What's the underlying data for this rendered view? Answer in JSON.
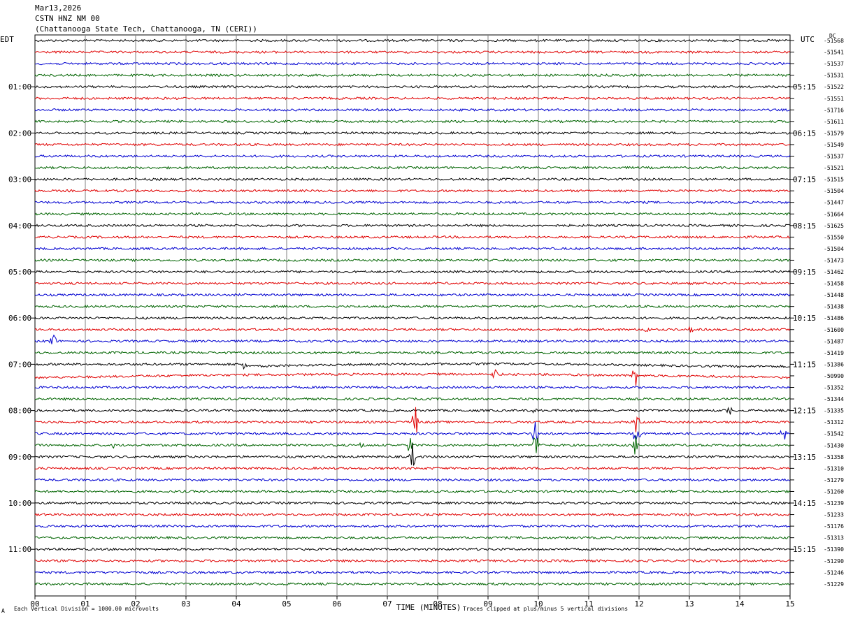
{
  "header": {
    "date": "Mar13,2026",
    "station": "CSTN HNZ NM 00",
    "location": "(Chattanooga State Tech, Chattanooga, TN (CERI))"
  },
  "left_tz": "EDT",
  "right_tz": "UTC",
  "dc_label": "DC",
  "footer": {
    "scale_note": "Each Vertical Division = 1000.00 microvolts",
    "clip_note": "Traces clipped at plus/minus 5 vertical divisions",
    "corner_mark": "A"
  },
  "colors": {
    "trace_cycle": [
      "#000000",
      "#e00000",
      "#0000d0",
      "#006400"
    ],
    "grid": "#808080"
  },
  "chart_data": {
    "type": "line",
    "title": "CSTN HNZ NM 00",
    "xlabel": "TIME (MINUTES)",
    "xlim": [
      0,
      15
    ],
    "x_ticks": [
      "00",
      "01",
      "02",
      "03",
      "04",
      "05",
      "06",
      "07",
      "08",
      "09",
      "10",
      "11",
      "12",
      "13",
      "14",
      "15"
    ],
    "traces_per_hour": 4,
    "left_hour_labels": [
      "01:00",
      "02:00",
      "03:00",
      "04:00",
      "05:00",
      "06:00",
      "07:00",
      "08:00",
      "09:00",
      "10:00",
      "11:00"
    ],
    "right_hour_labels": [
      "05:15",
      "06:15",
      "07:15",
      "08:15",
      "09:15",
      "10:15",
      "11:15",
      "12:15",
      "13:15",
      "14:15",
      "15:15"
    ],
    "dc_offsets": [
      -51568,
      -51541,
      -51537,
      -51531,
      -51522,
      -51551,
      -51716,
      -51611,
      -51579,
      -51549,
      -51537,
      -51521,
      -51515,
      -51504,
      -51447,
      -51664,
      -51625,
      -51550,
      -51504,
      -51473,
      -51462,
      -51458,
      -51448,
      -51438,
      -51486,
      -51600,
      -51487,
      -51419,
      -51386,
      -50990,
      -51352,
      -51344,
      -51335,
      -51312,
      -51542,
      -51430,
      -51358,
      -51310,
      -51279,
      -51260,
      -51239,
      -51233,
      -51176,
      -51313,
      -51390,
      -51290,
      -51246,
      -51229
    ],
    "events": [
      {
        "trace": 26,
        "minute": 0.35,
        "amp": 1.6
      },
      {
        "trace": 25,
        "minute": 12.15,
        "amp": 0.6
      },
      {
        "trace": 25,
        "minute": 13.05,
        "amp": 0.7
      },
      {
        "trace": 28,
        "minute": 4.15,
        "amp": 0.9
      },
      {
        "trace": 29,
        "minute": 9.15,
        "amp": 0.9
      },
      {
        "trace": 29,
        "minute": 11.92,
        "amp": 1.8
      },
      {
        "trace": 32,
        "minute": 9.9,
        "amp": 0.4
      },
      {
        "trace": 32,
        "minute": 13.8,
        "amp": 0.6
      },
      {
        "trace": 33,
        "minute": 7.55,
        "amp": 2.6
      },
      {
        "trace": 33,
        "minute": 11.95,
        "amp": 1.8
      },
      {
        "trace": 34,
        "minute": 9.95,
        "amp": 2.6
      },
      {
        "trace": 34,
        "minute": 11.95,
        "amp": 2.2
      },
      {
        "trace": 34,
        "minute": 14.85,
        "amp": 1.8
      },
      {
        "trace": 35,
        "minute": 7.45,
        "amp": 1.2
      },
      {
        "trace": 35,
        "minute": 9.95,
        "amp": 2.4
      },
      {
        "trace": 35,
        "minute": 11.95,
        "amp": 2.0
      },
      {
        "trace": 35,
        "minute": 1.55,
        "amp": 0.5
      },
      {
        "trace": 35,
        "minute": 6.5,
        "amp": 0.5
      },
      {
        "trace": 36,
        "minute": 7.5,
        "amp": 1.8
      }
    ],
    "drifts": [
      {
        "trace": 28,
        "from_minute": 4.2,
        "shape": "bow",
        "amp": 0.5
      },
      {
        "trace": 29,
        "from_minute": 0,
        "shape": "bow-up",
        "amp": 0.5
      }
    ]
  }
}
